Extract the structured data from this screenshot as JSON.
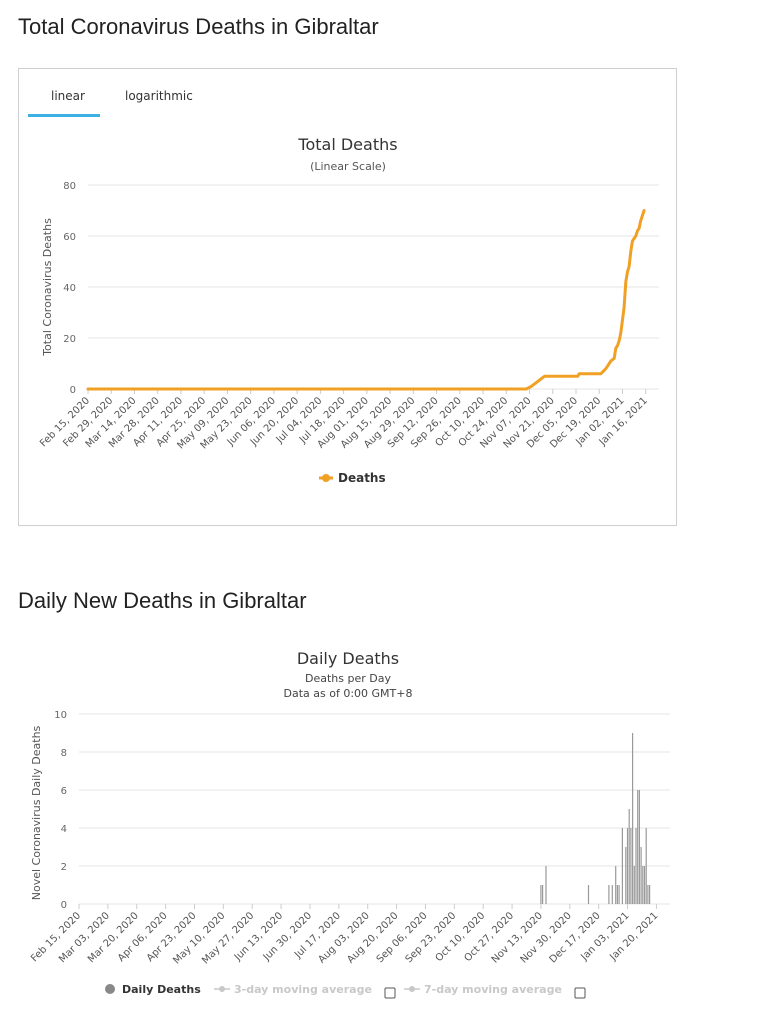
{
  "headings": {
    "total": "Total Coronavirus Deaths in Gibraltar",
    "daily": "Daily New Deaths in Gibraltar"
  },
  "tabs": [
    {
      "label": "linear",
      "active": true
    },
    {
      "label": "logarithmic",
      "active": false
    }
  ],
  "colors": {
    "accent_tab": "#3db1e6",
    "line": "#f0a024",
    "bar": "#9a9a9a",
    "grid": "#e6e6e6",
    "legend_muted": "#c8c8c8"
  },
  "chart_data": [
    {
      "type": "line",
      "title": "Total Deaths",
      "subtitle": "(Linear Scale)",
      "ylabel": "Total Coronavirus Deaths",
      "ylim": [
        0,
        80
      ],
      "yticks": [
        0,
        20,
        40,
        60,
        80
      ],
      "xlim": [
        "2020-02-15",
        "2021-01-24"
      ],
      "xticks": [
        "Feb 15, 2020",
        "Feb 29, 2020",
        "Mar 14, 2020",
        "Mar 28, 2020",
        "Apr 11, 2020",
        "Apr 25, 2020",
        "May 09, 2020",
        "May 23, 2020",
        "Jun 06, 2020",
        "Jun 20, 2020",
        "Jul 04, 2020",
        "Jul 18, 2020",
        "Aug 01, 2020",
        "Aug 15, 2020",
        "Aug 29, 2020",
        "Sep 12, 2020",
        "Sep 26, 2020",
        "Oct 10, 2020",
        "Oct 24, 2020",
        "Nov 07, 2020",
        "Nov 21, 2020",
        "Dec 05, 2020",
        "Dec 19, 2020",
        "Jan 02, 2021",
        "Jan 16, 2021"
      ],
      "grid": true,
      "legend": "bottom-center",
      "series": [
        {
          "name": "Deaths",
          "points": [
            [
              "2020-02-15",
              0
            ],
            [
              "2020-11-05",
              0
            ],
            [
              "2020-11-08",
              1
            ],
            [
              "2020-11-12",
              3
            ],
            [
              "2020-11-14",
              4
            ],
            [
              "2020-11-16",
              5
            ],
            [
              "2020-12-06",
              5
            ],
            [
              "2020-12-07",
              6
            ],
            [
              "2020-12-20",
              6
            ],
            [
              "2020-12-23",
              8
            ],
            [
              "2020-12-26",
              11
            ],
            [
              "2020-12-28",
              12
            ],
            [
              "2020-12-29",
              16
            ],
            [
              "2020-12-30",
              17
            ],
            [
              "2020-12-31",
              19
            ],
            [
              "2021-01-01",
              22
            ],
            [
              "2021-01-03",
              32
            ],
            [
              "2021-01-04",
              42
            ],
            [
              "2021-01-05",
              46
            ],
            [
              "2021-01-06",
              48
            ],
            [
              "2021-01-07",
              54
            ],
            [
              "2021-01-08",
              58
            ],
            [
              "2021-01-09",
              59
            ],
            [
              "2021-01-10",
              60
            ],
            [
              "2021-01-11",
              62
            ],
            [
              "2021-01-12",
              63
            ],
            [
              "2021-01-13",
              66
            ],
            [
              "2021-01-14",
              68
            ],
            [
              "2021-01-15",
              70
            ]
          ]
        }
      ]
    },
    {
      "type": "bar",
      "title": "Daily Deaths",
      "subtitle": "Deaths per Day",
      "subtitle2": "Data as of 0:00 GMT+8",
      "ylabel": "Novel Coronavirus Daily Deaths",
      "ylim": [
        0,
        10
      ],
      "yticks": [
        0,
        2,
        4,
        6,
        8,
        10
      ],
      "xlim": [
        "2020-02-15",
        "2021-01-28"
      ],
      "xticks": [
        "Feb 15, 2020",
        "Mar 03, 2020",
        "Mar 20, 2020",
        "Apr 06, 2020",
        "Apr 23, 2020",
        "May 10, 2020",
        "May 27, 2020",
        "Jun 13, 2020",
        "Jun 30, 2020",
        "Jul 17, 2020",
        "Aug 03, 2020",
        "Aug 20, 2020",
        "Sep 06, 2020",
        "Sep 23, 2020",
        "Oct 10, 2020",
        "Oct 27, 2020",
        "Nov 13, 2020",
        "Nov 30, 2020",
        "Dec 17, 2020",
        "Jan 03, 2021",
        "Jan 20, 2021"
      ],
      "grid": true,
      "legend": "bottom-center",
      "legend_items": [
        {
          "label": "Daily Deaths",
          "active": true
        },
        {
          "label": "3-day moving average",
          "active": false
        },
        {
          "label": "7-day moving average",
          "active": false
        }
      ],
      "series": [
        {
          "name": "Daily Deaths",
          "points": [
            [
              "2020-11-13",
              1
            ],
            [
              "2020-11-14",
              1
            ],
            [
              "2020-11-16",
              2
            ],
            [
              "2020-12-11",
              1
            ],
            [
              "2020-12-23",
              1
            ],
            [
              "2020-12-25",
              1
            ],
            [
              "2020-12-27",
              2
            ],
            [
              "2020-12-28",
              1
            ],
            [
              "2020-12-29",
              1
            ],
            [
              "2020-12-31",
              4
            ],
            [
              "2021-01-02",
              3
            ],
            [
              "2021-01-03",
              4
            ],
            [
              "2021-01-04",
              5
            ],
            [
              "2021-01-05",
              4
            ],
            [
              "2021-01-06",
              9
            ],
            [
              "2021-01-07",
              2
            ],
            [
              "2021-01-08",
              4
            ],
            [
              "2021-01-09",
              6
            ],
            [
              "2021-01-10",
              6
            ],
            [
              "2021-01-11",
              3
            ],
            [
              "2021-01-12",
              2
            ],
            [
              "2021-01-13",
              2
            ],
            [
              "2021-01-14",
              4
            ],
            [
              "2021-01-15",
              1
            ],
            [
              "2021-01-16",
              1
            ]
          ]
        }
      ]
    }
  ]
}
